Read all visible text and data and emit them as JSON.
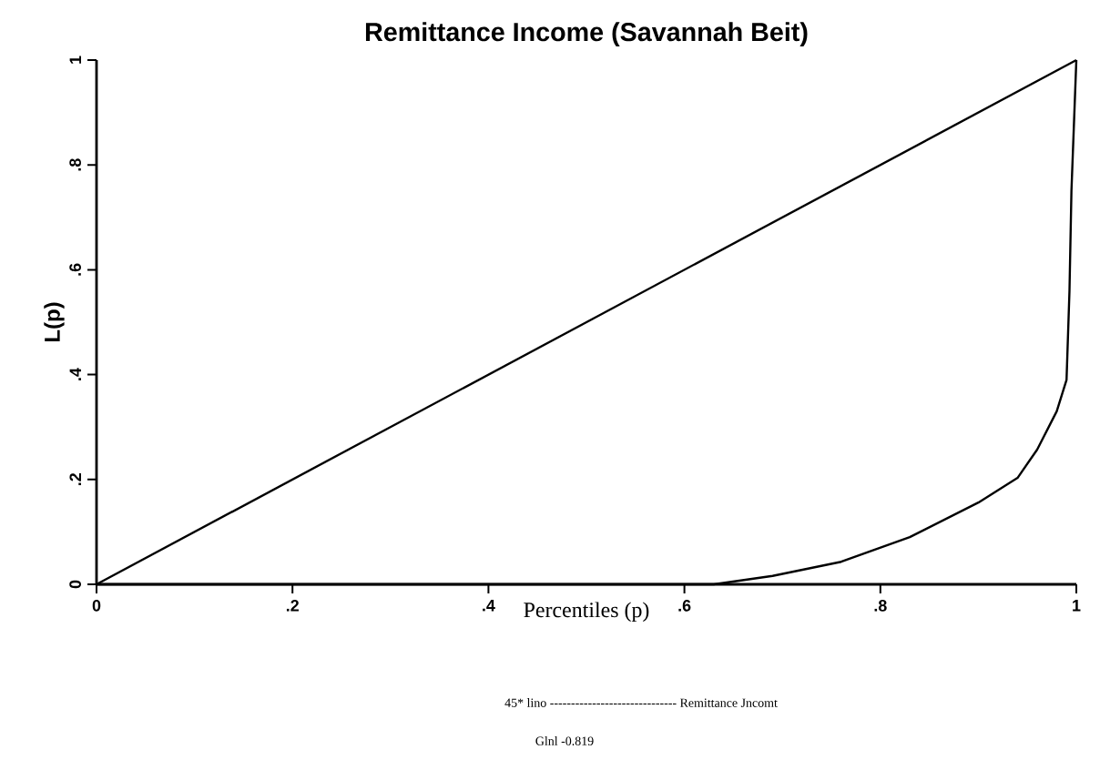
{
  "chart_data": {
    "type": "line",
    "title": "Remittance Income (Savannah Beit)",
    "xlabel": "Percentiles (p)",
    "ylabel": "L(p)",
    "annotations": [
      "45* lino ------------------------------ Remittance   Jncomt",
      "Glnl -0.819"
    ],
    "xlim": [
      0,
      1
    ],
    "ylim": [
      0,
      1
    ],
    "xticks": [
      0,
      {
        "value": 0.2,
        "label": ".2"
      },
      {
        "value": 0.4,
        "label": ".4"
      },
      {
        "value": 0.6,
        "label": ".6"
      },
      {
        "value": 0.8,
        "label": ".8"
      },
      1
    ],
    "yticks": [
      0,
      {
        "value": 0.2,
        "label": ".2"
      },
      {
        "value": 0.4,
        "label": ".4"
      },
      {
        "value": 0.6,
        "label": ".6"
      },
      {
        "value": 0.8,
        "label": ".8"
      },
      1
    ],
    "series": [
      {
        "color": "#000000",
        "x": [
          0,
          1
        ],
        "values": [
          0,
          1
        ]
      },
      {
        "color": "#000000",
        "x": [
          0,
          0.63,
          0.69,
          0.76,
          0.83,
          0.9,
          0.94,
          0.96,
          0.98,
          0.99,
          0.993,
          0.995,
          0.998,
          1
        ],
        "values": [
          0,
          0,
          0.016,
          0.043,
          0.09,
          0.156,
          0.203,
          0.257,
          0.33,
          0.39,
          0.56,
          0.75,
          0.9,
          1
        ]
      }
    ]
  }
}
